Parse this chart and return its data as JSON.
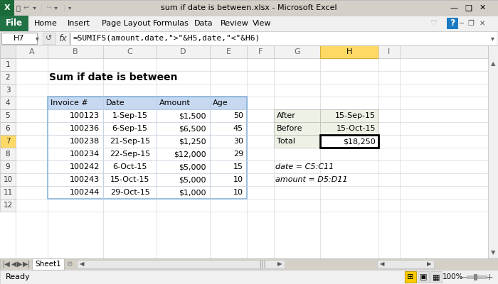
{
  "title_bar": "sum if date is between.xlsx - Microsoft Excel",
  "cell_ref": "H7",
  "formula": "=SUMIFS(amount,date,\">\"&H5,date,\"<\"&H6)",
  "sheet_title": "Sum if date is between",
  "headers": [
    "Invoice #",
    "Date",
    "Amount",
    "Age"
  ],
  "rows": [
    [
      "100123",
      "1-Sep-15",
      "$1,500",
      "50"
    ],
    [
      "100236",
      "6-Sep-15",
      "$6,500",
      "45"
    ],
    [
      "100238",
      "21-Sep-15",
      "$1,250",
      "30"
    ],
    [
      "100234",
      "22-Sep-15",
      "$12,000",
      "29"
    ],
    [
      "100242",
      "6-Oct-15",
      "$5,000",
      "15"
    ],
    [
      "100243",
      "15-Oct-15",
      "$5,000",
      "10"
    ],
    [
      "100244",
      "29-Oct-15",
      "$1,000",
      "10"
    ]
  ],
  "side_labels": [
    "After",
    "Before",
    "Total"
  ],
  "side_values": [
    "15-Sep-15",
    "15-Oct-15",
    "$18,250"
  ],
  "notes": [
    "date = C5:C11",
    "amount = D5:D11"
  ],
  "col_labels": [
    "A",
    "B",
    "C",
    "D",
    "E",
    "F",
    "G",
    "H",
    "I"
  ],
  "row_labels": [
    "1",
    "2",
    "3",
    "4",
    "5",
    "6",
    "7",
    "8",
    "9",
    "10",
    "11",
    "12"
  ],
  "menu_items": [
    "File",
    "Home",
    "Insert",
    "Page Layout",
    "Formulas",
    "Data",
    "Review",
    "View"
  ],
  "bg_color": "#f0f0f0",
  "header_blue": "#c6d9f1",
  "file_green": "#217346",
  "selected_col_yellow": "#ffd966",
  "side_table_bg": "#eef2e0",
  "title_bar_bg": "#d9d9d9",
  "ribbon_bg": "#f0f0f0",
  "scrollbar_bg": "#e0e0e0",
  "grid_color": "#d0d0d0",
  "row_header_bg": "#f2f2f2",
  "row7_highlight": "#ffd966"
}
